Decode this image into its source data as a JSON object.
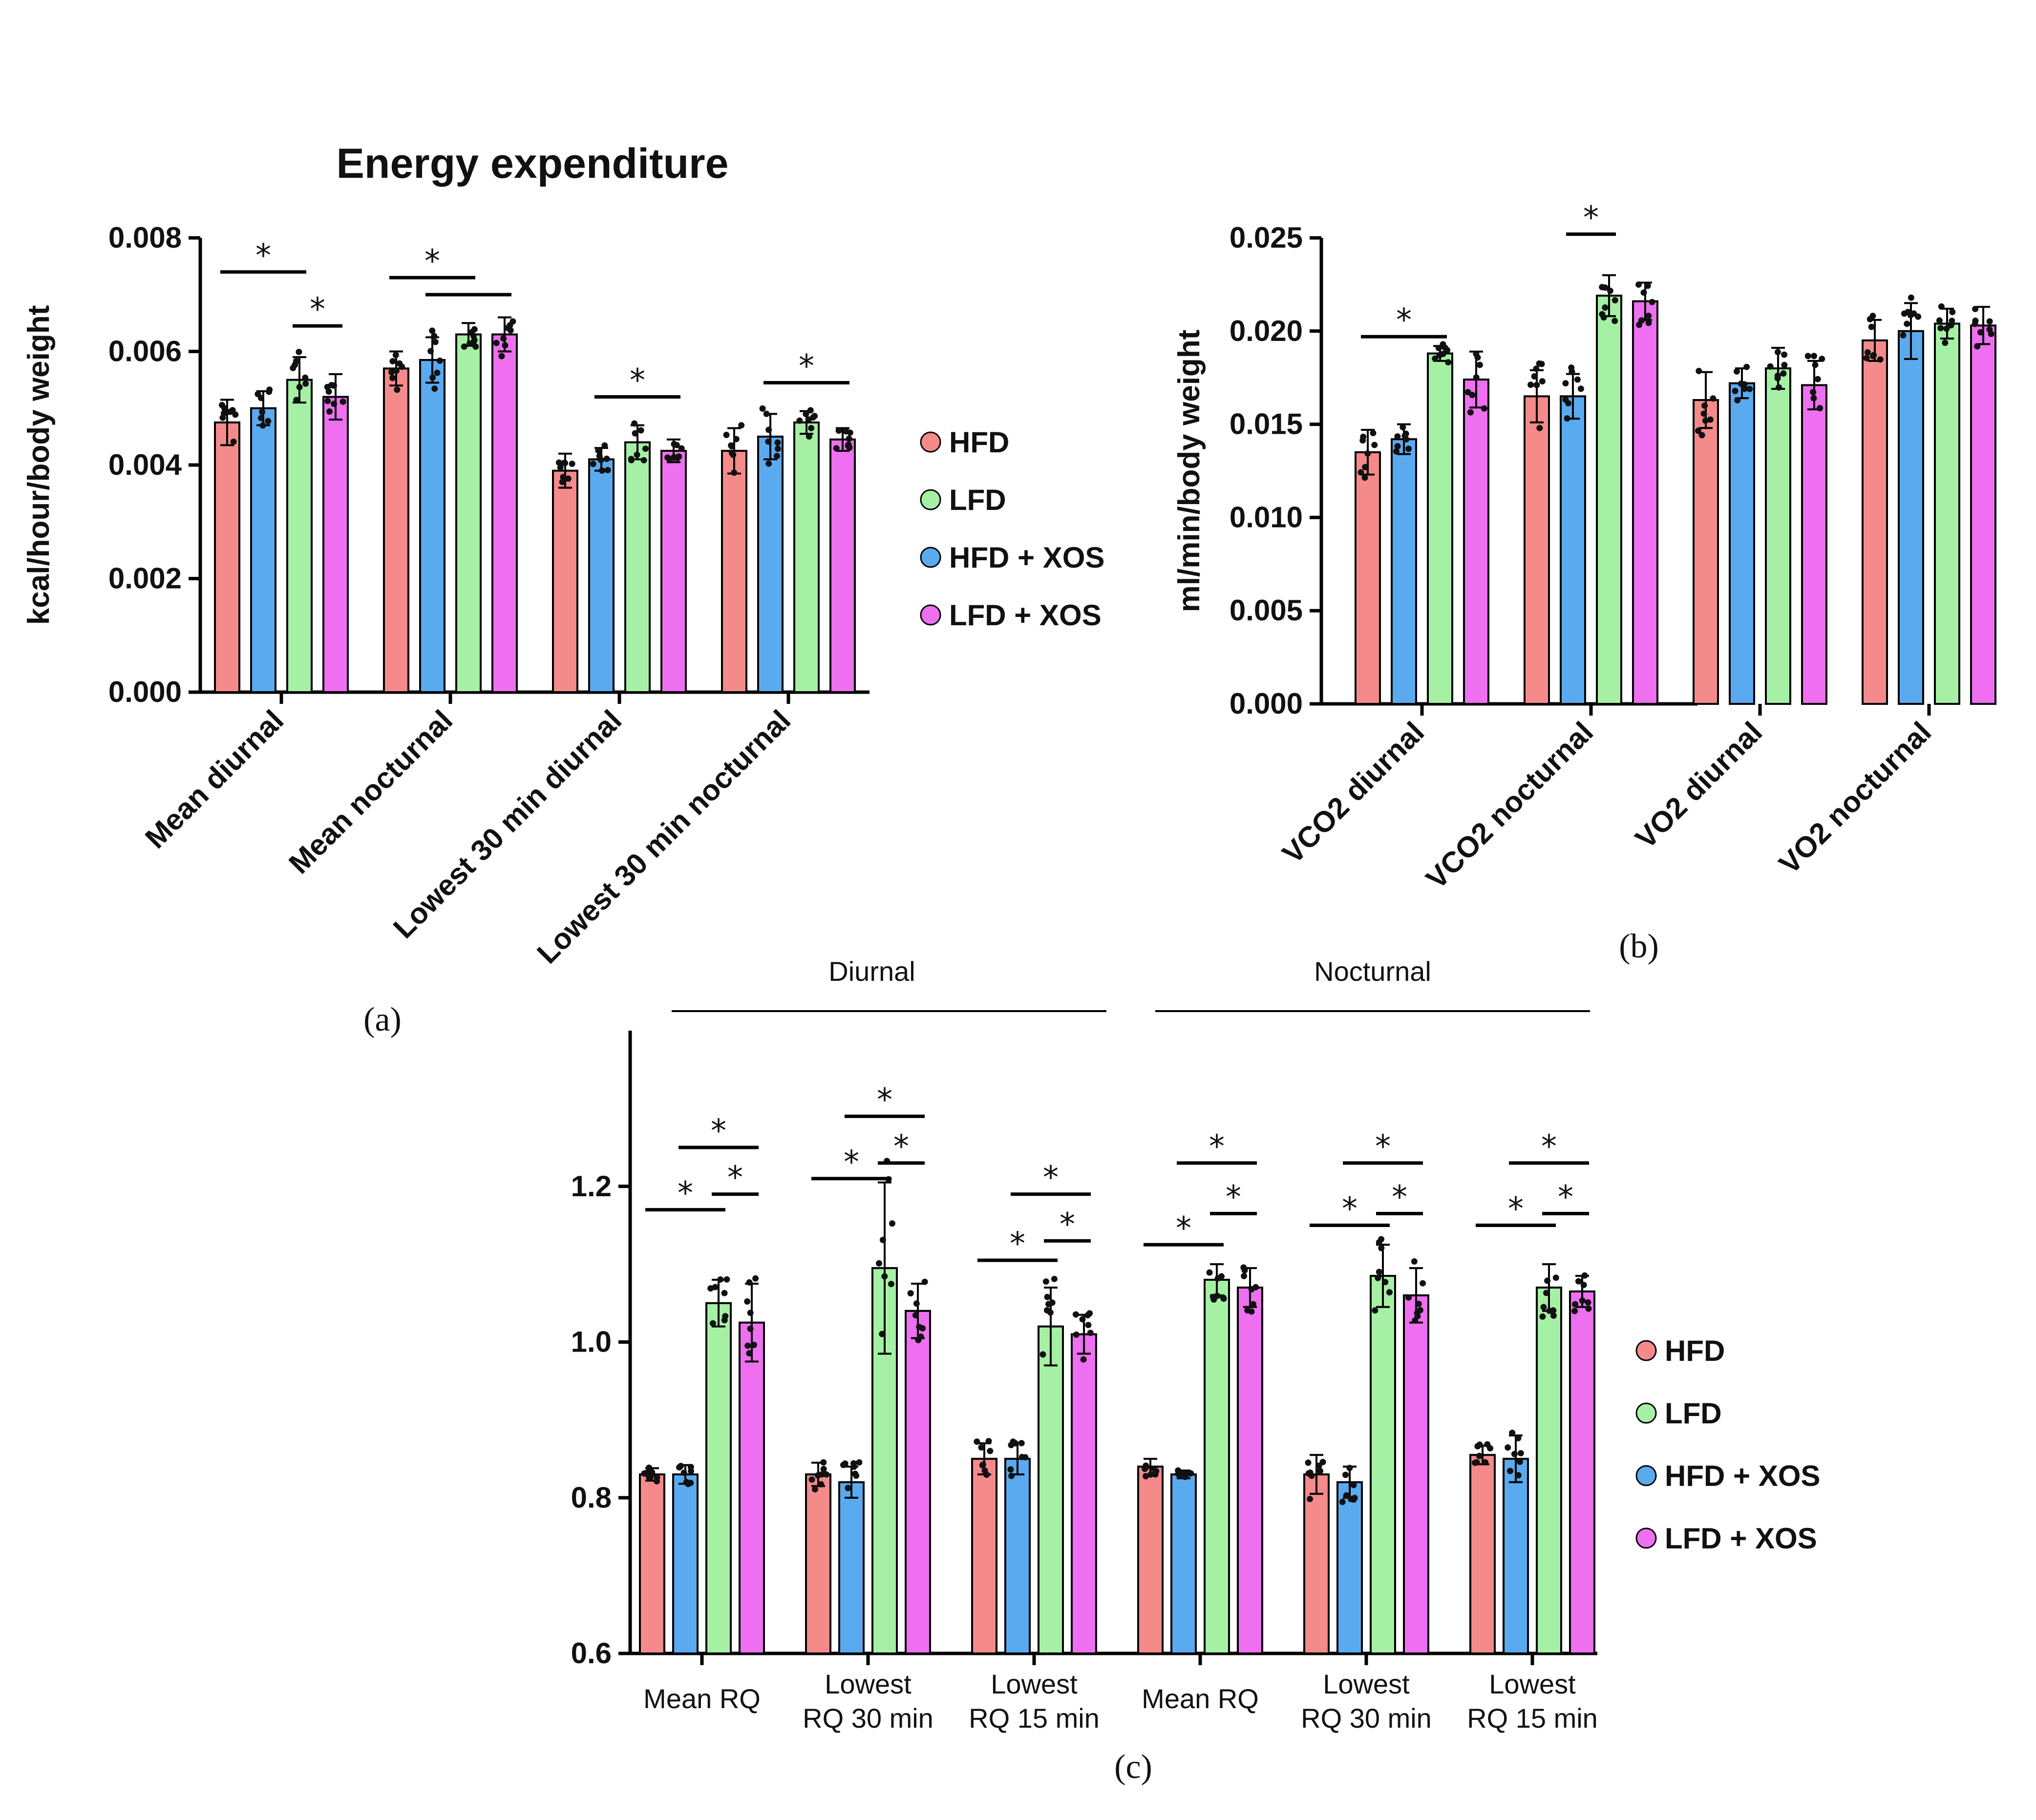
{
  "colors": {
    "HFD": "#f58a8a",
    "LFD": "#a5f0a5",
    "HFD + XOS": "#5aaaf0",
    "LFD + XOS": "#ee6ff0"
  },
  "legend": [
    "HFD",
    "LFD",
    "HFD + XOS",
    "LFD + XOS"
  ],
  "bar_order": [
    "HFD",
    "HFD + XOS",
    "LFD",
    "LFD + XOS"
  ],
  "panel_labels": {
    "a": "(a)",
    "b": "(b)",
    "c": "(c)"
  },
  "star": "*",
  "group_labels": {
    "left": "Diurnal",
    "right": "Nocturnal"
  },
  "chart_data": [
    {
      "id": "a",
      "type": "bar",
      "title": "Energy expenditure",
      "xlabel": "",
      "ylabel": "kcal/hour/body weight",
      "ylim": [
        0,
        0.008
      ],
      "yticks": [
        "0.000",
        "0.002",
        "0.004",
        "0.006",
        "0.008"
      ],
      "categories": [
        "Mean diurnal",
        "Mean nocturnal",
        "Lowest 30 min diurnal",
        "Lowest 30 min nocturnal"
      ],
      "series": [
        {
          "name": "HFD",
          "values": [
            0.00475,
            0.0057,
            0.0039,
            0.00425
          ],
          "errors": [
            0.0004,
            0.0003,
            0.0003,
            0.0004
          ]
        },
        {
          "name": "HFD + XOS",
          "values": [
            0.005,
            0.00585,
            0.0041,
            0.0045
          ],
          "errors": [
            0.0003,
            0.0004,
            0.0002,
            0.0004
          ]
        },
        {
          "name": "LFD",
          "values": [
            0.0055,
            0.0063,
            0.0044,
            0.00475
          ],
          "errors": [
            0.0004,
            0.0002,
            0.0003,
            0.0002
          ]
        },
        {
          "name": "LFD + XOS",
          "values": [
            0.0052,
            0.0063,
            0.00425,
            0.00445
          ],
          "errors": [
            0.0004,
            0.0003,
            0.0002,
            0.0002
          ]
        }
      ],
      "significance": [
        {
          "category": 0,
          "from": 0,
          "to": 2,
          "level": 0.0074
        },
        {
          "category": 0,
          "from": 2,
          "to": 3,
          "level": 0.00645
        },
        {
          "category": 1,
          "from": 0,
          "to": 2,
          "level": 0.0073
        },
        {
          "category": 1,
          "from": 1,
          "to": 3,
          "level": 0.007,
          "star": false
        },
        {
          "category": 2,
          "from": 1,
          "to": 3,
          "level": 0.0052
        },
        {
          "category": 3,
          "from": 1,
          "to": 3,
          "level": 0.00545
        }
      ]
    },
    {
      "id": "b",
      "type": "bar",
      "title": "",
      "xlabel": "",
      "ylabel": "ml/min/body weight",
      "ylim": [
        0,
        0.025
      ],
      "yticks": [
        "0.000",
        "0.005",
        "0.010",
        "0.015",
        "0.020",
        "0.025"
      ],
      "categories": [
        "VCO2 diurnal",
        "VCO2 nocturnal",
        "VO2 diurnal",
        "VO2 nocturnal"
      ],
      "series": [
        {
          "name": "HFD",
          "values": [
            0.0135,
            0.0165,
            0.0163,
            0.0195
          ],
          "errors": [
            0.0012,
            0.0014,
            0.0015,
            0.0011
          ]
        },
        {
          "name": "HFD + XOS",
          "values": [
            0.0142,
            0.0165,
            0.0172,
            0.02
          ],
          "errors": [
            0.0008,
            0.0012,
            0.0008,
            0.0015
          ]
        },
        {
          "name": "LFD",
          "values": [
            0.0188,
            0.0219,
            0.018,
            0.0204
          ],
          "errors": [
            0.0004,
            0.0011,
            0.0011,
            0.0008
          ]
        },
        {
          "name": "LFD + XOS",
          "values": [
            0.0174,
            0.0216,
            0.0171,
            0.0203
          ],
          "errors": [
            0.0015,
            0.001,
            0.0013,
            0.001
          ]
        }
      ],
      "significance": [
        {
          "category": 0,
          "from": 0,
          "to": 2,
          "level": 0.0197
        },
        {
          "category": 1,
          "from": 1,
          "to": 2,
          "level": 0.0252
        }
      ]
    },
    {
      "id": "c",
      "type": "bar",
      "title": "",
      "xlabel": "",
      "ylabel": "",
      "ylim": [
        0.6,
        1.4
      ],
      "yticks": [
        "0.6",
        "0.8",
        "1.0",
        "1.2"
      ],
      "categories": [
        "Mean RQ",
        "Lowest RQ 30 min",
        "Lowest RQ 15 min",
        "Mean RQ",
        "Lowest RQ 30 min",
        "Lowest RQ 15 min"
      ],
      "series": [
        {
          "name": "HFD",
          "values": [
            0.83,
            0.83,
            0.85,
            0.84,
            0.83,
            0.855
          ],
          "errors": [
            0.008,
            0.015,
            0.02,
            0.01,
            0.025,
            0.012
          ]
        },
        {
          "name": "HFD + XOS",
          "values": [
            0.83,
            0.82,
            0.85,
            0.83,
            0.82,
            0.85
          ],
          "errors": [
            0.012,
            0.02,
            0.02,
            0.005,
            0.02,
            0.03
          ]
        },
        {
          "name": "LFD",
          "values": [
            1.05,
            1.095,
            1.02,
            1.08,
            1.085,
            1.07
          ],
          "errors": [
            0.03,
            0.11,
            0.05,
            0.02,
            0.04,
            0.03
          ]
        },
        {
          "name": "LFD + XOS",
          "values": [
            1.025,
            1.04,
            1.01,
            1.07,
            1.06,
            1.065
          ],
          "errors": [
            0.05,
            0.035,
            0.025,
            0.025,
            0.035,
            0.02
          ]
        }
      ],
      "significance": [
        {
          "category": 0,
          "from": 0,
          "to": 2,
          "level": 1.17
        },
        {
          "category": 0,
          "from": 2,
          "to": 3,
          "level": 1.19
        },
        {
          "category": 0,
          "from": 1,
          "to": 3,
          "level": 1.25
        },
        {
          "category": 1,
          "from": 0,
          "to": 2,
          "level": 1.21
        },
        {
          "category": 1,
          "from": 2,
          "to": 3,
          "level": 1.23
        },
        {
          "category": 1,
          "from": 1,
          "to": 3,
          "level": 1.29
        },
        {
          "category": 2,
          "from": 0,
          "to": 2,
          "level": 1.105
        },
        {
          "category": 2,
          "from": 2,
          "to": 3,
          "level": 1.13
        },
        {
          "category": 2,
          "from": 1,
          "to": 3,
          "level": 1.19
        },
        {
          "category": 3,
          "from": 0,
          "to": 2,
          "level": 1.125
        },
        {
          "category": 3,
          "from": 2,
          "to": 3,
          "level": 1.165
        },
        {
          "category": 3,
          "from": 1,
          "to": 3,
          "level": 1.23
        },
        {
          "category": 4,
          "from": 0,
          "to": 2,
          "level": 1.15
        },
        {
          "category": 4,
          "from": 2,
          "to": 3,
          "level": 1.165
        },
        {
          "category": 4,
          "from": 1,
          "to": 3,
          "level": 1.23
        },
        {
          "category": 5,
          "from": 0,
          "to": 2,
          "level": 1.15
        },
        {
          "category": 5,
          "from": 2,
          "to": 3,
          "level": 1.165
        },
        {
          "category": 5,
          "from": 1,
          "to": 3,
          "level": 1.23
        }
      ]
    }
  ]
}
